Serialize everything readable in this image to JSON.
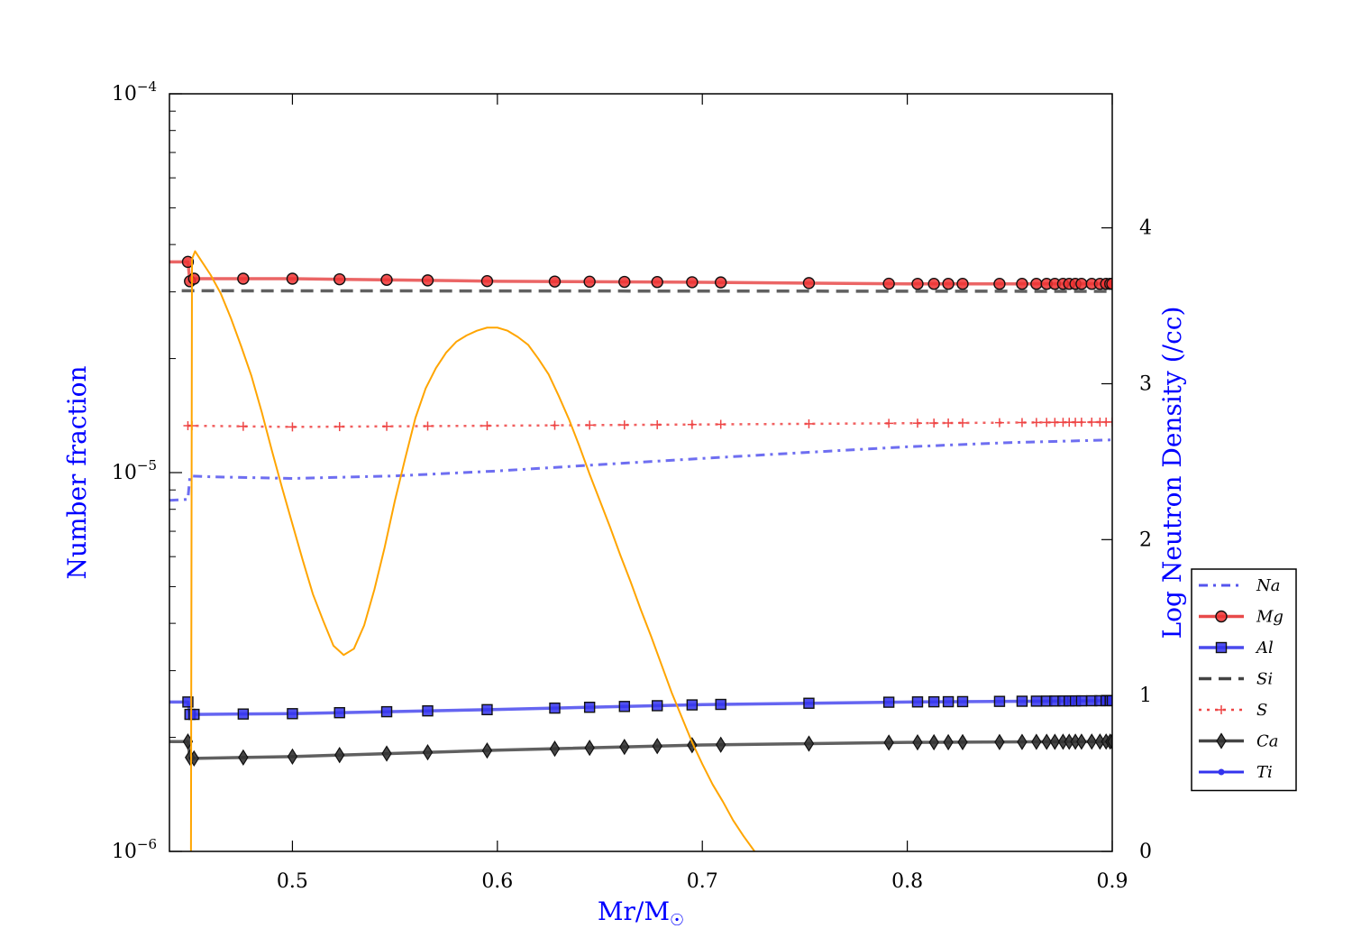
{
  "chart_data": {
    "type": "line",
    "xlabel": "Mr/M☉",
    "ylabel": "Number fraction",
    "y2label": "Log Neutron Density (/cc)",
    "xlim": [
      0.44,
      0.9
    ],
    "ylim": [
      1e-06,
      0.0001
    ],
    "yscale": "log",
    "y2lim": [
      0,
      4.86
    ],
    "x_ticks": [
      0.5,
      0.6,
      0.7,
      0.8,
      0.9
    ],
    "x_tick_labels": [
      "0.5",
      "0.6",
      "0.7",
      "0.8",
      "0.9"
    ],
    "y_ticks": [
      1e-06,
      1e-05,
      0.0001
    ],
    "y_tick_labels": [
      {
        "base": "10",
        "exp": "−6"
      },
      {
        "base": "10",
        "exp": "−5"
      },
      {
        "base": "10",
        "exp": "−4"
      }
    ],
    "y2_ticks": [
      0,
      1,
      2,
      3,
      4
    ],
    "y2_tick_labels": [
      "0",
      "1",
      "2",
      "3",
      "4"
    ],
    "grid": false,
    "legend_position": "lower-right",
    "marker_x": [
      0.449,
      0.45,
      0.452,
      0.476,
      0.5,
      0.523,
      0.546,
      0.566,
      0.595,
      0.628,
      0.645,
      0.662,
      0.678,
      0.695,
      0.709,
      0.752,
      0.791,
      0.805,
      0.813,
      0.82,
      0.827,
      0.845,
      0.856,
      0.863,
      0.868,
      0.872,
      0.876,
      0.879,
      0.882,
      0.885,
      0.89,
      0.894,
      0.897,
      0.899,
      0.9
    ],
    "sulfur_marker_x": [
      0.449,
      0.451,
      0.476,
      0.5,
      0.523,
      0.546,
      0.566,
      0.595,
      0.628,
      0.645,
      0.662,
      0.678,
      0.695,
      0.709,
      0.752,
      0.791,
      0.805,
      0.813,
      0.82,
      0.827,
      0.845,
      0.856,
      0.863,
      0.868,
      0.872,
      0.876,
      0.879,
      0.882,
      0.885,
      0.89,
      0.894,
      0.897,
      0.9
    ],
    "series": [
      {
        "name": "Na",
        "axis": "left",
        "color": "#5555ee",
        "dash": "10 6 3 6",
        "width": 3,
        "marker": "none",
        "x": [
          0.44,
          0.449,
          0.45,
          0.46,
          0.5,
          0.55,
          0.6,
          0.65,
          0.7,
          0.75,
          0.8,
          0.85,
          0.9
        ],
        "y": [
          8.45e-06,
          8.5e-06,
          9.8e-06,
          9.75e-06,
          9.65e-06,
          9.8e-06,
          1.01e-05,
          1.05e-05,
          1.09e-05,
          1.13e-05,
          1.17e-05,
          1.2e-05,
          1.22e-05
        ]
      },
      {
        "name": "Mg",
        "axis": "left",
        "color": "#e84a4a",
        "dash": "",
        "width": 3.5,
        "marker": "circle",
        "marker_fill": "#ee3333",
        "x": [
          0.44,
          0.449,
          0.45,
          0.452,
          0.5,
          0.6,
          0.7,
          0.8,
          0.9
        ],
        "y": [
          3.6e-05,
          3.6e-05,
          3.2e-05,
          3.25e-05,
          3.25e-05,
          3.2e-05,
          3.18e-05,
          3.15e-05,
          3.15e-05
        ]
      },
      {
        "name": "Al",
        "axis": "left",
        "color": "#4a4aee",
        "dash": "",
        "width": 3.5,
        "marker": "square",
        "marker_fill": "#3333ee",
        "x": [
          0.44,
          0.449,
          0.45,
          0.452,
          0.5,
          0.6,
          0.7,
          0.8,
          0.9
        ],
        "y": [
          2.48e-06,
          2.48e-06,
          2.3e-06,
          2.3e-06,
          2.31e-06,
          2.37e-06,
          2.44e-06,
          2.48e-06,
          2.5e-06
        ]
      },
      {
        "name": "Si",
        "axis": "left",
        "color": "#444444",
        "dash": "14 8",
        "width": 3.5,
        "marker": "none",
        "x": [
          0.446,
          0.9
        ],
        "y": [
          3.02e-05,
          3.01e-05
        ]
      },
      {
        "name": "S",
        "axis": "left",
        "color": "#ee4444",
        "dash": "3 6",
        "width": 2.5,
        "marker": "plus",
        "x": [
          0.449,
          0.5,
          0.6,
          0.7,
          0.8,
          0.9
        ],
        "y": [
          1.33e-05,
          1.32e-05,
          1.33e-05,
          1.34e-05,
          1.35e-05,
          1.36e-05
        ]
      },
      {
        "name": "Ca",
        "axis": "left",
        "color": "#444444",
        "dash": "",
        "width": 3.5,
        "marker": "diamond",
        "marker_fill": "#333333",
        "x": [
          0.44,
          0.449,
          0.45,
          0.452,
          0.5,
          0.6,
          0.7,
          0.8,
          0.9
        ],
        "y": [
          1.95e-06,
          1.95e-06,
          1.77e-06,
          1.76e-06,
          1.78e-06,
          1.85e-06,
          1.91e-06,
          1.94e-06,
          1.95e-06
        ]
      },
      {
        "name": "Ti",
        "axis": "left",
        "color": "#3333ee",
        "dash": "",
        "width": 3,
        "marker": "dot",
        "legend_only": true,
        "x": [],
        "y": []
      },
      {
        "name": "",
        "axis": "right",
        "color": "#ffa500",
        "dash": "",
        "width": 2,
        "marker": "none",
        "x": [
          0.4505,
          0.451,
          0.4525,
          0.456,
          0.46,
          0.465,
          0.47,
          0.475,
          0.48,
          0.485,
          0.49,
          0.495,
          0.5,
          0.505,
          0.51,
          0.515,
          0.52,
          0.525,
          0.53,
          0.535,
          0.54,
          0.545,
          0.55,
          0.555,
          0.56,
          0.565,
          0.57,
          0.575,
          0.58,
          0.585,
          0.59,
          0.595,
          0.6,
          0.605,
          0.61,
          0.615,
          0.62,
          0.625,
          0.63,
          0.635,
          0.64,
          0.645,
          0.65,
          0.655,
          0.66,
          0.665,
          0.67,
          0.675,
          0.68,
          0.685,
          0.69,
          0.695,
          0.7,
          0.705,
          0.71,
          0.715,
          0.72,
          0.7255
        ],
        "y": [
          0,
          3.8,
          3.85,
          3.78,
          3.7,
          3.58,
          3.42,
          3.24,
          3.05,
          2.82,
          2.57,
          2.33,
          2.1,
          1.87,
          1.65,
          1.48,
          1.32,
          1.26,
          1.3,
          1.45,
          1.68,
          1.95,
          2.25,
          2.52,
          2.78,
          2.97,
          3.1,
          3.2,
          3.27,
          3.31,
          3.34,
          3.36,
          3.36,
          3.34,
          3.3,
          3.25,
          3.16,
          3.06,
          2.92,
          2.77,
          2.6,
          2.42,
          2.25,
          2.08,
          1.9,
          1.73,
          1.55,
          1.38,
          1.2,
          1.02,
          0.86,
          0.7,
          0.56,
          0.43,
          0.32,
          0.2,
          0.1,
          0
        ]
      }
    ]
  }
}
